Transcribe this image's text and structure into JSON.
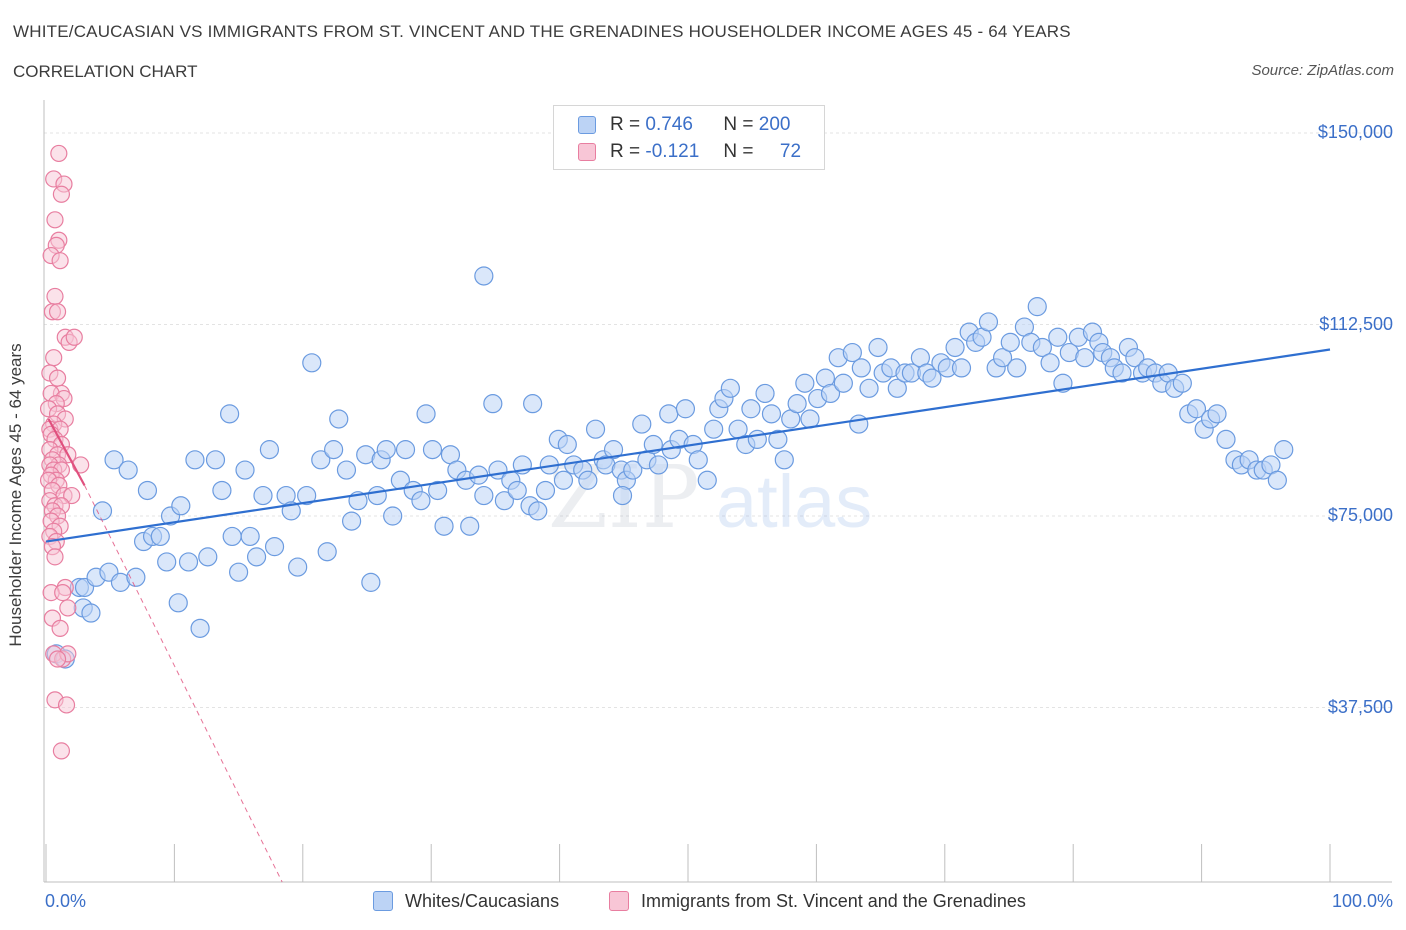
{
  "header": {
    "title": "WHITE/CAUCASIAN VS IMMIGRANTS FROM ST. VINCENT AND THE GRENADINES HOUSEHOLDER INCOME AGES 45 - 64 YEARS",
    "subtitle": "CORRELATION CHART",
    "source": "Source: ZipAtlas.com"
  },
  "legend": {
    "rows": [
      {
        "r_label": "R =",
        "r_value": "0.746",
        "n_label": "N =",
        "n_value": "200",
        "color": "#6b9be0",
        "fill": "#bcd3f5"
      },
      {
        "r_label": "R =",
        "r_value": "-0.121",
        "n_label": "N =",
        "n_value": "72",
        "color": "#e87ea0",
        "fill": "#f8c6d6"
      }
    ]
  },
  "bottom_legend": {
    "whites": "Whites/Caucasians",
    "immigrants": "Immigrants from St. Vincent and the Grenadines"
  },
  "watermark": {
    "zip": "ZIP",
    "atlas": "atlas"
  },
  "chart_data": {
    "type": "scatter",
    "ylabel": "Householder Income Ages 45 - 64 years",
    "xlabel": "",
    "x_tick_labels": [
      "0.0%",
      "100.0%"
    ],
    "y_tick_labels": [
      "$150,000",
      "$112,500",
      "$75,000",
      "$37,500"
    ],
    "y_ticks": [
      150000,
      112500,
      75000,
      37500
    ],
    "xlim": [
      0,
      100
    ],
    "ylim": [
      0,
      150000
    ],
    "grid": true,
    "colors": {
      "whites": "#6b9be0",
      "whites_fill": "#bcd3f5",
      "immigrants": "#e87ea0",
      "immigrants_fill": "#f8c6d6",
      "trend_whites": "#2f6fd0",
      "trend_immigrants": "#e0507e"
    },
    "series": [
      {
        "name": "Whites/Caucasians",
        "trend": {
          "x": [
            0,
            100
          ],
          "y": [
            70000,
            107600
          ]
        },
        "points": [
          [
            0.8,
            48000
          ],
          [
            1.5,
            47000
          ],
          [
            2.6,
            61000
          ],
          [
            2.9,
            57000
          ],
          [
            3.0,
            61000
          ],
          [
            3.5,
            56000
          ],
          [
            3.9,
            63000
          ],
          [
            4.4,
            76000
          ],
          [
            4.9,
            64000
          ],
          [
            5.3,
            86000
          ],
          [
            5.8,
            62000
          ],
          [
            6.4,
            84000
          ],
          [
            7.0,
            63000
          ],
          [
            7.6,
            70000
          ],
          [
            7.9,
            80000
          ],
          [
            8.3,
            71000
          ],
          [
            8.9,
            71000
          ],
          [
            9.4,
            66000
          ],
          [
            9.7,
            75000
          ],
          [
            10.3,
            58000
          ],
          [
            10.5,
            77000
          ],
          [
            11.1,
            66000
          ],
          [
            11.6,
            86000
          ],
          [
            12.0,
            53000
          ],
          [
            12.6,
            67000
          ],
          [
            13.2,
            86000
          ],
          [
            13.7,
            80000
          ],
          [
            14.3,
            95000
          ],
          [
            14.5,
            71000
          ],
          [
            15.0,
            64000
          ],
          [
            15.5,
            84000
          ],
          [
            15.9,
            71000
          ],
          [
            16.4,
            67000
          ],
          [
            16.9,
            79000
          ],
          [
            17.4,
            88000
          ],
          [
            17.8,
            69000
          ],
          [
            18.7,
            79000
          ],
          [
            19.1,
            76000
          ],
          [
            19.6,
            65000
          ],
          [
            20.3,
            79000
          ],
          [
            20.7,
            105000
          ],
          [
            21.4,
            86000
          ],
          [
            21.9,
            68000
          ],
          [
            22.4,
            88000
          ],
          [
            22.8,
            94000
          ],
          [
            23.4,
            84000
          ],
          [
            23.8,
            74000
          ],
          [
            24.3,
            78000
          ],
          [
            24.9,
            87000
          ],
          [
            25.3,
            62000
          ],
          [
            25.8,
            79000
          ],
          [
            26.1,
            86000
          ],
          [
            26.5,
            88000
          ],
          [
            27.0,
            75000
          ],
          [
            27.6,
            82000
          ],
          [
            28.0,
            88000
          ],
          [
            28.6,
            80000
          ],
          [
            29.2,
            78000
          ],
          [
            29.6,
            95000
          ],
          [
            30.1,
            88000
          ],
          [
            30.5,
            80000
          ],
          [
            31.0,
            73000
          ],
          [
            31.5,
            87000
          ],
          [
            32.0,
            84000
          ],
          [
            32.7,
            82000
          ],
          [
            33.0,
            73000
          ],
          [
            33.7,
            83000
          ],
          [
            34.1,
            79000
          ],
          [
            34.8,
            97000
          ],
          [
            35.2,
            84000
          ],
          [
            35.7,
            78000
          ],
          [
            36.2,
            82000
          ],
          [
            36.7,
            80000
          ],
          [
            37.1,
            85000
          ],
          [
            37.7,
            77000
          ],
          [
            38.3,
            76000
          ],
          [
            38.9,
            80000
          ],
          [
            39.2,
            85000
          ],
          [
            39.9,
            90000
          ],
          [
            40.3,
            82000
          ],
          [
            40.6,
            89000
          ],
          [
            41.1,
            85000
          ],
          [
            41.8,
            84000
          ],
          [
            42.2,
            82000
          ],
          [
            42.8,
            92000
          ],
          [
            43.4,
            86000
          ],
          [
            43.6,
            85000
          ],
          [
            44.2,
            88000
          ],
          [
            44.8,
            84000
          ],
          [
            45.2,
            82000
          ],
          [
            45.7,
            84000
          ],
          [
            46.4,
            93000
          ],
          [
            46.8,
            86000
          ],
          [
            47.3,
            89000
          ],
          [
            47.7,
            85000
          ],
          [
            48.5,
            95000
          ],
          [
            48.7,
            88000
          ],
          [
            49.3,
            90000
          ],
          [
            49.8,
            96000
          ],
          [
            50.4,
            89000
          ],
          [
            50.8,
            86000
          ],
          [
            51.5,
            82000
          ],
          [
            52.0,
            92000
          ],
          [
            52.4,
            96000
          ],
          [
            52.8,
            98000
          ],
          [
            53.3,
            100000
          ],
          [
            53.9,
            92000
          ],
          [
            54.5,
            89000
          ],
          [
            54.9,
            96000
          ],
          [
            55.4,
            90000
          ],
          [
            56.0,
            99000
          ],
          [
            56.5,
            95000
          ],
          [
            57.0,
            90000
          ],
          [
            57.5,
            86000
          ],
          [
            58.0,
            94000
          ],
          [
            58.5,
            97000
          ],
          [
            59.1,
            101000
          ],
          [
            59.5,
            94000
          ],
          [
            60.1,
            98000
          ],
          [
            60.7,
            102000
          ],
          [
            61.1,
            99000
          ],
          [
            61.7,
            106000
          ],
          [
            62.1,
            101000
          ],
          [
            62.8,
            107000
          ],
          [
            63.3,
            93000
          ],
          [
            63.5,
            104000
          ],
          [
            64.1,
            100000
          ],
          [
            64.8,
            108000
          ],
          [
            65.2,
            103000
          ],
          [
            65.8,
            104000
          ],
          [
            66.3,
            100000
          ],
          [
            66.9,
            103000
          ],
          [
            67.4,
            103000
          ],
          [
            68.1,
            106000
          ],
          [
            68.6,
            103000
          ],
          [
            69.0,
            102000
          ],
          [
            69.7,
            105000
          ],
          [
            70.2,
            104000
          ],
          [
            70.8,
            108000
          ],
          [
            71.3,
            104000
          ],
          [
            71.9,
            111000
          ],
          [
            72.4,
            109000
          ],
          [
            72.9,
            110000
          ],
          [
            73.4,
            113000
          ],
          [
            74.0,
            104000
          ],
          [
            74.5,
            106000
          ],
          [
            75.1,
            109000
          ],
          [
            75.6,
            104000
          ],
          [
            76.2,
            112000
          ],
          [
            76.7,
            109000
          ],
          [
            77.2,
            116000
          ],
          [
            77.6,
            108000
          ],
          [
            78.2,
            105000
          ],
          [
            78.8,
            110000
          ],
          [
            79.2,
            101000
          ],
          [
            79.7,
            107000
          ],
          [
            80.4,
            110000
          ],
          [
            80.9,
            106000
          ],
          [
            81.5,
            111000
          ],
          [
            82.0,
            109000
          ],
          [
            82.3,
            107000
          ],
          [
            82.9,
            106000
          ],
          [
            83.2,
            104000
          ],
          [
            83.8,
            103000
          ],
          [
            84.3,
            108000
          ],
          [
            84.8,
            106000
          ],
          [
            85.4,
            103000
          ],
          [
            85.8,
            104000
          ],
          [
            86.4,
            103000
          ],
          [
            86.9,
            101000
          ],
          [
            87.4,
            103000
          ],
          [
            87.9,
            100000
          ],
          [
            88.5,
            101000
          ],
          [
            89.0,
            95000
          ],
          [
            89.6,
            96000
          ],
          [
            90.2,
            92000
          ],
          [
            90.7,
            94000
          ],
          [
            91.2,
            95000
          ],
          [
            91.9,
            90000
          ],
          [
            92.6,
            86000
          ],
          [
            93.1,
            85000
          ],
          [
            93.7,
            86000
          ],
          [
            94.3,
            84000
          ],
          [
            94.8,
            84000
          ],
          [
            95.4,
            85000
          ],
          [
            95.9,
            82000
          ],
          [
            96.4,
            88000
          ],
          [
            34.1,
            122000
          ],
          [
            37.9,
            97000
          ],
          [
            44.9,
            79000
          ]
        ]
      },
      {
        "name": "Immigrants from St. Vincent and the Grenadines",
        "trend": {
          "x": [
            0.2,
            3.0
          ],
          "y": [
            94000,
            81000
          ]
        },
        "trend_dashed": {
          "x": [
            3.0,
            25.0
          ],
          "y": [
            81000,
            -30000
          ]
        },
        "points": [
          [
            1.0,
            146000
          ],
          [
            0.6,
            141000
          ],
          [
            1.4,
            140000
          ],
          [
            1.2,
            138000
          ],
          [
            0.7,
            133000
          ],
          [
            1.0,
            129000
          ],
          [
            0.8,
            128000
          ],
          [
            0.4,
            126000
          ],
          [
            1.1,
            125000
          ],
          [
            0.7,
            118000
          ],
          [
            0.5,
            115000
          ],
          [
            0.9,
            115000
          ],
          [
            1.5,
            110000
          ],
          [
            1.8,
            109000
          ],
          [
            0.6,
            106000
          ],
          [
            0.3,
            103000
          ],
          [
            0.9,
            102000
          ],
          [
            1.2,
            99000
          ],
          [
            0.4,
            99000
          ],
          [
            1.4,
            98000
          ],
          [
            0.8,
            97000
          ],
          [
            0.2,
            96000
          ],
          [
            0.9,
            95000
          ],
          [
            1.5,
            94000
          ],
          [
            0.6,
            93000
          ],
          [
            0.3,
            92000
          ],
          [
            1.1,
            92000
          ],
          [
            0.4,
            91000
          ],
          [
            0.7,
            90000
          ],
          [
            1.2,
            89000
          ],
          [
            0.3,
            88000
          ],
          [
            0.9,
            87000
          ],
          [
            1.7,
            87000
          ],
          [
            0.5,
            86000
          ],
          [
            1.0,
            85000
          ],
          [
            2.7,
            85000
          ],
          [
            0.3,
            85000
          ],
          [
            0.6,
            84000
          ],
          [
            1.2,
            84000
          ],
          [
            0.4,
            83000
          ],
          [
            0.8,
            82000
          ],
          [
            0.2,
            82000
          ],
          [
            1.0,
            81000
          ],
          [
            0.5,
            80000
          ],
          [
            1.4,
            79000
          ],
          [
            2.0,
            79000
          ],
          [
            0.3,
            78000
          ],
          [
            0.7,
            77000
          ],
          [
            1.2,
            77000
          ],
          [
            0.5,
            76000
          ],
          [
            0.9,
            75000
          ],
          [
            0.4,
            74000
          ],
          [
            1.1,
            73000
          ],
          [
            0.6,
            72000
          ],
          [
            0.3,
            71000
          ],
          [
            0.8,
            70000
          ],
          [
            0.5,
            69000
          ],
          [
            0.7,
            67000
          ],
          [
            1.5,
            61000
          ],
          [
            0.4,
            60000
          ],
          [
            1.3,
            60000
          ],
          [
            1.7,
            57000
          ],
          [
            0.5,
            55000
          ],
          [
            1.1,
            53000
          ],
          [
            0.6,
            48000
          ],
          [
            1.3,
            47000
          ],
          [
            1.7,
            48000
          ],
          [
            0.9,
            47000
          ],
          [
            0.7,
            39000
          ],
          [
            1.6,
            38000
          ],
          [
            1.2,
            29000
          ],
          [
            2.2,
            110000
          ]
        ]
      }
    ]
  }
}
